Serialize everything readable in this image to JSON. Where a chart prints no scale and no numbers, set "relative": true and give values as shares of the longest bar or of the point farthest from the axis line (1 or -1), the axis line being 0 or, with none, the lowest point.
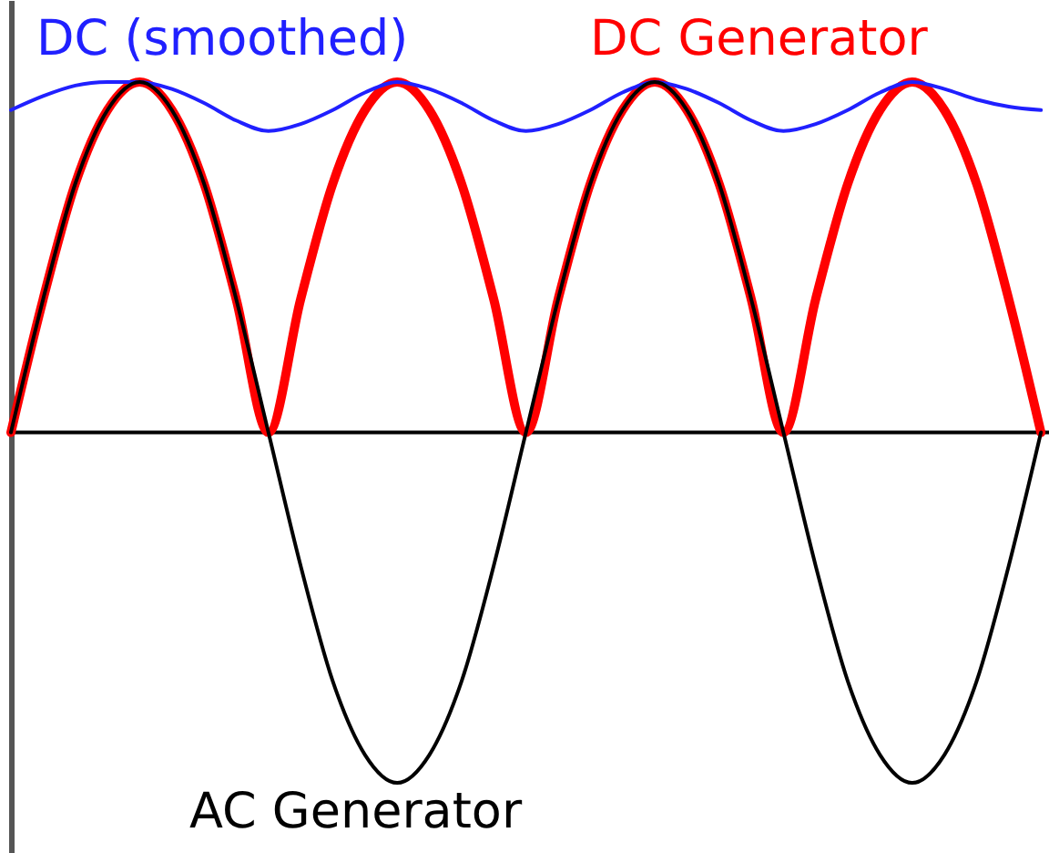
{
  "chart_data": {
    "type": "line",
    "relative": true,
    "legend": false,
    "grid": false,
    "categories": [
      null,
      null,
      null,
      null,
      null,
      null,
      null,
      null,
      null,
      null,
      null,
      null,
      null,
      null,
      null,
      null,
      null,
      null,
      null,
      null,
      null,
      null,
      null,
      null,
      null,
      null,
      null,
      null,
      null,
      null,
      null,
      null,
      null
    ],
    "series": [
      {
        "name": "DC Generator",
        "color": "#ff0000",
        "values": [
          0,
          0.38,
          0.71,
          0.92,
          1,
          0.92,
          0.71,
          0.38,
          0,
          0.38,
          0.71,
          0.92,
          1,
          0.92,
          0.71,
          0.38,
          0,
          0.38,
          0.71,
          0.92,
          1,
          0.92,
          0.71,
          0.38,
          0,
          0.38,
          0.71,
          0.92,
          1,
          0.92,
          0.71,
          0.38,
          0
        ]
      },
      {
        "name": "DC (smoothed)",
        "color": "#2020ff",
        "values": [
          0.92,
          0.96,
          0.99,
          1,
          1,
          0.98,
          0.94,
          0.89,
          0.86,
          0.88,
          0.92,
          0.97,
          1,
          0.98,
          0.94,
          0.89,
          0.86,
          0.88,
          0.92,
          0.97,
          1,
          0.98,
          0.94,
          0.89,
          0.86,
          0.88,
          0.92,
          0.97,
          1,
          0.98,
          0.95,
          0.93,
          0.92
        ]
      },
      {
        "name": "AC Generator",
        "color": "#000000",
        "values": [
          0,
          0.38,
          0.71,
          0.92,
          1,
          0.92,
          0.71,
          0.38,
          0,
          -0.38,
          -0.71,
          -0.92,
          -1,
          -0.92,
          -0.71,
          -0.38,
          0,
          0.38,
          0.71,
          0.92,
          1,
          0.92,
          0.71,
          0.38,
          0,
          -0.38,
          -0.71,
          -0.92,
          -1,
          -0.92,
          -0.71,
          -0.38,
          0
        ]
      }
    ]
  }
}
